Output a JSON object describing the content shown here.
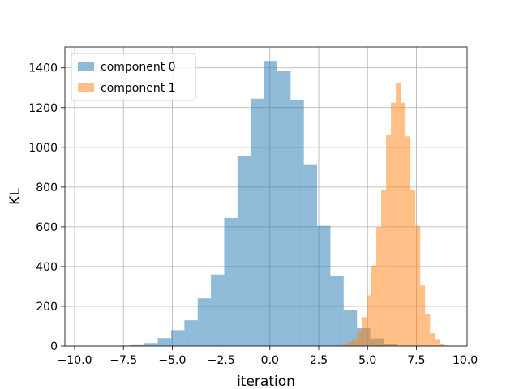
{
  "chart_data": {
    "type": "histogram",
    "title": "",
    "xlabel": "iteration",
    "ylabel": "KL",
    "xlim": [
      -10.5,
      10.1
    ],
    "ylim": [
      0,
      1505
    ],
    "xticks": [
      -10.0,
      -7.5,
      -5.0,
      -2.5,
      0.0,
      2.5,
      5.0,
      7.5,
      10.0
    ],
    "xtick_labels": [
      "−10.0",
      "−7.5",
      "−5.0",
      "−2.5",
      "0.0",
      "2.5",
      "5.0",
      "7.5",
      "10.0"
    ],
    "yticks": [
      0,
      200,
      400,
      600,
      800,
      1000,
      1200,
      1400
    ],
    "ytick_labels": [
      "0",
      "200",
      "400",
      "600",
      "800",
      "1000",
      "1200",
      "1400"
    ],
    "grid": true,
    "legend_position": "top-left",
    "series": [
      {
        "name": "component 0",
        "color": "#1f77b4",
        "alpha": 0.5,
        "bins": [
          {
            "x0": -10.5,
            "x1": -9.82,
            "count": 0
          },
          {
            "x0": -9.82,
            "x1": -9.14,
            "count": 0
          },
          {
            "x0": -9.14,
            "x1": -8.46,
            "count": 1
          },
          {
            "x0": -8.46,
            "x1": -7.78,
            "count": 1
          },
          {
            "x0": -7.78,
            "x1": -7.1,
            "count": 2
          },
          {
            "x0": -7.1,
            "x1": -6.42,
            "count": 5
          },
          {
            "x0": -6.42,
            "x1": -5.74,
            "count": 15
          },
          {
            "x0": -5.74,
            "x1": -5.06,
            "count": 40
          },
          {
            "x0": -5.06,
            "x1": -4.38,
            "count": 80
          },
          {
            "x0": -4.38,
            "x1": -3.7,
            "count": 130
          },
          {
            "x0": -3.7,
            "x1": -3.02,
            "count": 240
          },
          {
            "x0": -3.02,
            "x1": -2.34,
            "count": 360
          },
          {
            "x0": -2.34,
            "x1": -1.66,
            "count": 645
          },
          {
            "x0": -1.66,
            "x1": -0.98,
            "count": 955
          },
          {
            "x0": -0.98,
            "x1": -0.3,
            "count": 1245
          },
          {
            "x0": -0.3,
            "x1": 0.38,
            "count": 1435
          },
          {
            "x0": 0.38,
            "x1": 1.06,
            "count": 1385
          },
          {
            "x0": 1.06,
            "x1": 1.74,
            "count": 1240
          },
          {
            "x0": 1.74,
            "x1": 2.42,
            "count": 915
          },
          {
            "x0": 2.42,
            "x1": 3.1,
            "count": 605
          },
          {
            "x0": 3.1,
            "x1": 3.78,
            "count": 355
          },
          {
            "x0": 3.78,
            "x1": 4.46,
            "count": 180
          },
          {
            "x0": 4.46,
            "x1": 5.14,
            "count": 90
          },
          {
            "x0": 5.14,
            "x1": 5.82,
            "count": 38
          },
          {
            "x0": 5.82,
            "x1": 6.5,
            "count": 12
          }
        ]
      },
      {
        "name": "component 1",
        "color": "#ff7f0e",
        "alpha": 0.5,
        "bins": [
          {
            "x0": 3.7,
            "x1": 3.95,
            "count": 5
          },
          {
            "x0": 3.95,
            "x1": 4.2,
            "count": 20
          },
          {
            "x0": 4.2,
            "x1": 4.45,
            "count": 35
          },
          {
            "x0": 4.45,
            "x1": 4.7,
            "count": 70
          },
          {
            "x0": 4.7,
            "x1": 4.95,
            "count": 145
          },
          {
            "x0": 4.95,
            "x1": 5.2,
            "count": 255
          },
          {
            "x0": 5.2,
            "x1": 5.45,
            "count": 405
          },
          {
            "x0": 5.45,
            "x1": 5.7,
            "count": 600
          },
          {
            "x0": 5.7,
            "x1": 5.95,
            "count": 785
          },
          {
            "x0": 5.95,
            "x1": 6.2,
            "count": 1065
          },
          {
            "x0": 6.2,
            "x1": 6.45,
            "count": 1225
          },
          {
            "x0": 6.45,
            "x1": 6.7,
            "count": 1325
          },
          {
            "x0": 6.7,
            "x1": 6.95,
            "count": 1225
          },
          {
            "x0": 6.95,
            "x1": 7.2,
            "count": 1055
          },
          {
            "x0": 7.2,
            "x1": 7.45,
            "count": 785
          },
          {
            "x0": 7.45,
            "x1": 7.7,
            "count": 605
          },
          {
            "x0": 7.7,
            "x1": 7.95,
            "count": 305
          },
          {
            "x0": 7.95,
            "x1": 8.2,
            "count": 160
          },
          {
            "x0": 8.2,
            "x1": 8.45,
            "count": 65
          },
          {
            "x0": 8.45,
            "x1": 8.7,
            "count": 35
          },
          {
            "x0": 8.7,
            "x1": 8.95,
            "count": 10
          },
          {
            "x0": 8.95,
            "x1": 9.2,
            "count": 3
          }
        ]
      }
    ]
  }
}
